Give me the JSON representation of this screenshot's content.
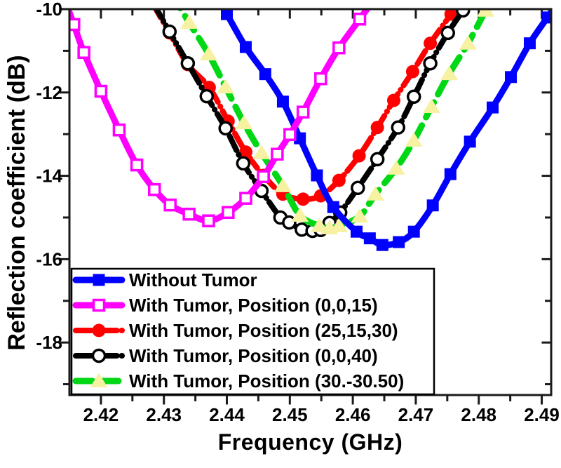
{
  "figure": {
    "xlabel": "Frequency (GHz)",
    "ylabel": "Reflection coefficient (dB)"
  },
  "chart_data": {
    "type": "line",
    "title": "",
    "xlabel": "Frequency (GHz)",
    "ylabel": "Reflection coefficient (dB)",
    "xlim": [
      2.415,
      2.4915
    ],
    "ylim": [
      -19.26,
      -10
    ],
    "x_ticks": [
      2.42,
      2.43,
      2.44,
      2.45,
      2.46,
      2.47,
      2.48,
      2.49
    ],
    "x_minor_ticks": [
      2.425,
      2.435,
      2.445,
      2.455,
      2.465,
      2.475,
      2.485
    ],
    "y_ticks": [
      -10,
      -12,
      -14,
      -16,
      -18
    ],
    "y_minor_ticks": [
      -11,
      -13,
      -15,
      -17,
      -19
    ],
    "grid": false,
    "legend_position": "inside-bottom-left",
    "frame_color": "#1a1a1a",
    "draw_order": [
      "tumor-25-15-30",
      "tumor-0-0-40",
      "tumor-30-30-50",
      "without-tumor",
      "tumor-0-0-15"
    ],
    "series": [
      {
        "id": "without-tumor",
        "name": "Without Tumor",
        "color": "#0000FF",
        "line": "solid",
        "marker": "square",
        "marker_fill": "#0000FF",
        "min_point": [
          2.4647,
          -15.66
        ],
        "points": [
          [
            2.44,
            -10.12
          ],
          [
            2.443,
            -10.91
          ],
          [
            2.4461,
            -11.56
          ],
          [
            2.4489,
            -12.22
          ],
          [
            2.4516,
            -13.1
          ],
          [
            2.4543,
            -13.99
          ],
          [
            2.4569,
            -14.75
          ],
          [
            2.4606,
            -15.34
          ],
          [
            2.4627,
            -15.5
          ],
          [
            2.4647,
            -15.66
          ],
          [
            2.4673,
            -15.59
          ],
          [
            2.4697,
            -15.34
          ],
          [
            2.4727,
            -14.71
          ],
          [
            2.4755,
            -13.96
          ],
          [
            2.4786,
            -13.18
          ],
          [
            2.4822,
            -12.36
          ],
          [
            2.4851,
            -11.63
          ],
          [
            2.4881,
            -10.82
          ],
          [
            2.4909,
            -10.2
          ]
        ]
      },
      {
        "id": "tumor-0-0-15",
        "name": "With Tumor, Position (0,0,15)",
        "color": "#FF00FF",
        "line": "solid",
        "marker": "square-open",
        "marker_fill": "#FFFFFF",
        "min_point": [
          2.4371,
          -15.08
        ],
        "points": [
          [
            2.4157,
            -10.37
          ],
          [
            2.4173,
            -11.04
          ],
          [
            2.42,
            -11.97
          ],
          [
            2.4229,
            -12.9
          ],
          [
            2.4257,
            -13.74
          ],
          [
            2.4285,
            -14.33
          ],
          [
            2.431,
            -14.7
          ],
          [
            2.434,
            -14.92
          ],
          [
            2.4371,
            -15.08
          ],
          [
            2.4402,
            -14.88
          ],
          [
            2.443,
            -14.54
          ],
          [
            2.4458,
            -14.02
          ],
          [
            2.448,
            -13.48
          ],
          [
            2.45,
            -13.01
          ],
          [
            2.4521,
            -12.47
          ],
          [
            2.4549,
            -11.67
          ],
          [
            2.4578,
            -10.93
          ],
          [
            2.4611,
            -10.24
          ]
        ]
      },
      {
        "id": "tumor-25-15-30",
        "name": "With Tumor, Position (25,15,30)",
        "color": "#FF0000",
        "line": "dash-dot",
        "marker": "circle",
        "marker_fill": "#FF0000",
        "min_point": [
          2.4521,
          -14.56
        ],
        "points": [
          [
            2.4309,
            -10.57
          ],
          [
            2.4338,
            -11.33
          ],
          [
            2.4372,
            -11.88
          ],
          [
            2.4402,
            -12.69
          ],
          [
            2.443,
            -13.43
          ],
          [
            2.4458,
            -13.99
          ],
          [
            2.4489,
            -14.44
          ],
          [
            2.4521,
            -14.56
          ],
          [
            2.4549,
            -14.48
          ],
          [
            2.4578,
            -14.11
          ],
          [
            2.461,
            -13.52
          ],
          [
            2.4639,
            -12.84
          ],
          [
            2.4665,
            -12.19
          ],
          [
            2.4695,
            -11.5
          ],
          [
            2.4723,
            -10.82
          ],
          [
            2.4756,
            -10.12
          ]
        ]
      },
      {
        "id": "tumor-0-0-40",
        "name": "With Tumor, Position (0,0,40)",
        "color": "#000000",
        "line": "dash-dot",
        "marker": "circle-open",
        "marker_fill": "#FFFFFF",
        "min_point": [
          2.4536,
          -15.32
        ],
        "points": [
          [
            2.4309,
            -10.54
          ],
          [
            2.4338,
            -11.3
          ],
          [
            2.4368,
            -12.09
          ],
          [
            2.4398,
            -12.86
          ],
          [
            2.4426,
            -13.7
          ],
          [
            2.4455,
            -14.36
          ],
          [
            2.4485,
            -15.0
          ],
          [
            2.4499,
            -15.12
          ],
          [
            2.4519,
            -15.29
          ],
          [
            2.4536,
            -15.32
          ],
          [
            2.4549,
            -15.3
          ],
          [
            2.4563,
            -15.13
          ],
          [
            2.458,
            -14.88
          ],
          [
            2.4608,
            -14.29
          ],
          [
            2.4639,
            -13.6
          ],
          [
            2.4672,
            -12.84
          ],
          [
            2.4697,
            -12.1
          ],
          [
            2.4723,
            -11.3
          ],
          [
            2.4751,
            -10.57
          ],
          [
            2.4775,
            -10.03
          ]
        ]
      },
      {
        "id": "tumor-30-30-50",
        "name": "With Tumor, Position (30.-30.50)",
        "color": "#00D816",
        "line": "dash",
        "marker": "triangle",
        "marker_fill": "#F7F1A2",
        "min_point": [
          2.4563,
          -15.25
        ],
        "points": [
          [
            2.434,
            -10.32
          ],
          [
            2.4371,
            -11.08
          ],
          [
            2.4398,
            -11.87
          ],
          [
            2.4427,
            -12.73
          ],
          [
            2.4455,
            -13.45
          ],
          [
            2.4489,
            -14.24
          ],
          [
            2.4516,
            -14.95
          ],
          [
            2.4547,
            -15.2
          ],
          [
            2.4563,
            -15.25
          ],
          [
            2.4578,
            -15.2
          ],
          [
            2.4611,
            -14.97
          ],
          [
            2.4636,
            -14.44
          ],
          [
            2.4669,
            -13.82
          ],
          [
            2.4697,
            -13.15
          ],
          [
            2.4725,
            -12.34
          ],
          [
            2.4753,
            -11.55
          ],
          [
            2.4783,
            -10.82
          ],
          [
            2.4811,
            -10.03
          ]
        ]
      }
    ]
  }
}
